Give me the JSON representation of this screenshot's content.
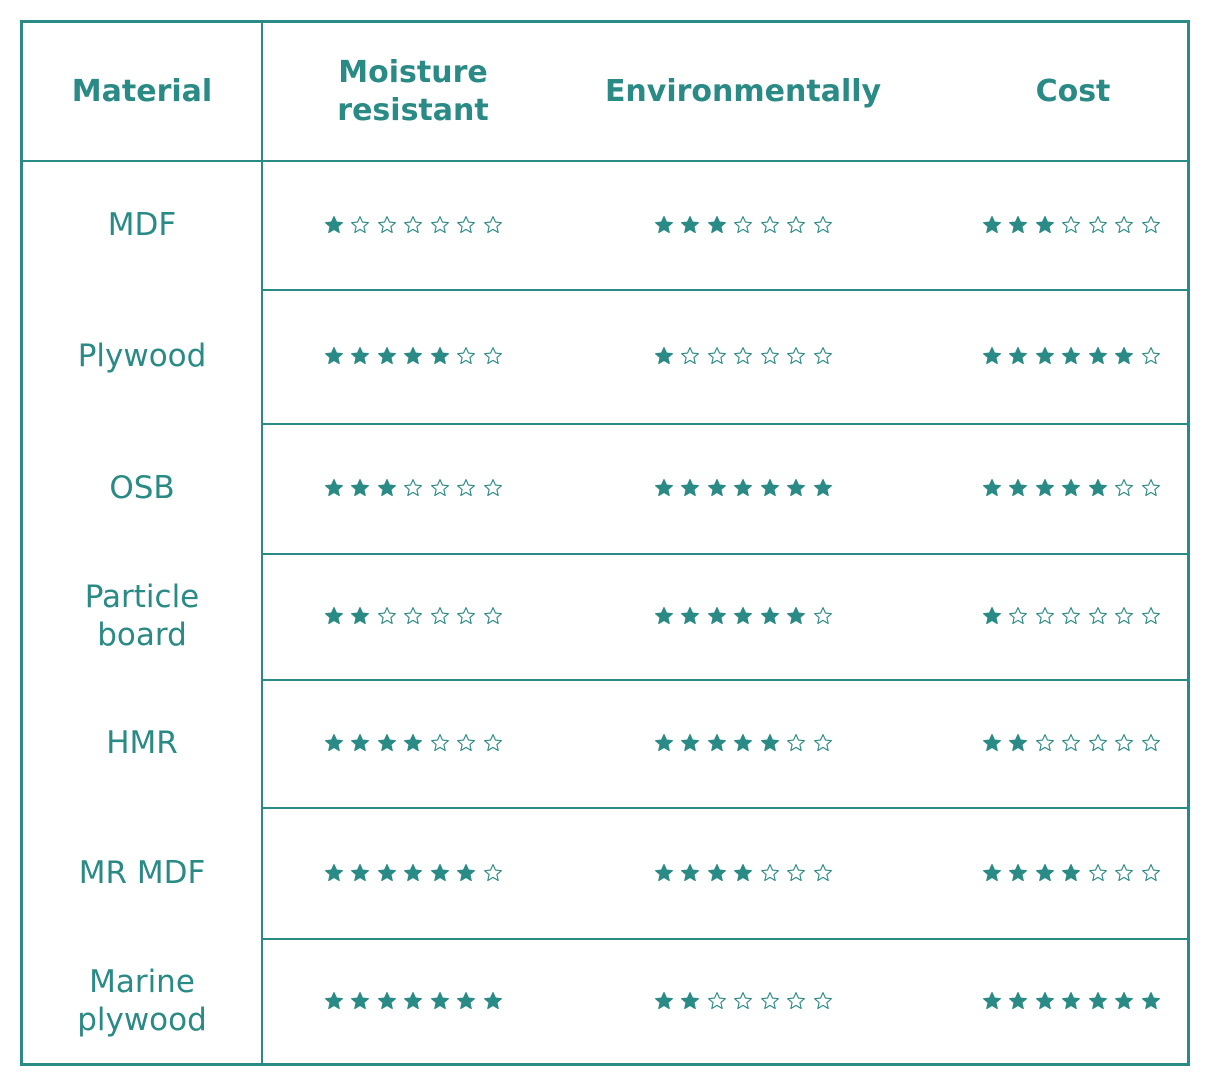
{
  "headers": {
    "material": "Material",
    "moisture": "Moisture resistant",
    "environment": "Environmentally",
    "cost": "Cost"
  },
  "max_stars": 7,
  "colors": {
    "accent": "#2a8a85",
    "background": "#ffffff"
  },
  "rows": [
    {
      "material": "MDF",
      "moisture": 1,
      "environment": 3,
      "cost": 3
    },
    {
      "material": "Plywood",
      "moisture": 5,
      "environment": 1,
      "cost": 6
    },
    {
      "material": "OSB",
      "moisture": 3,
      "environment": 7,
      "cost": 5
    },
    {
      "material": "Particle board",
      "moisture": 2,
      "environment": 6,
      "cost": 1
    },
    {
      "material": "HMR",
      "moisture": 4,
      "environment": 5,
      "cost": 2
    },
    {
      "material": "MR MDF",
      "moisture": 6,
      "environment": 4,
      "cost": 4
    },
    {
      "material": "Marine plywood",
      "moisture": 7,
      "environment": 2,
      "cost": 7
    }
  ]
}
